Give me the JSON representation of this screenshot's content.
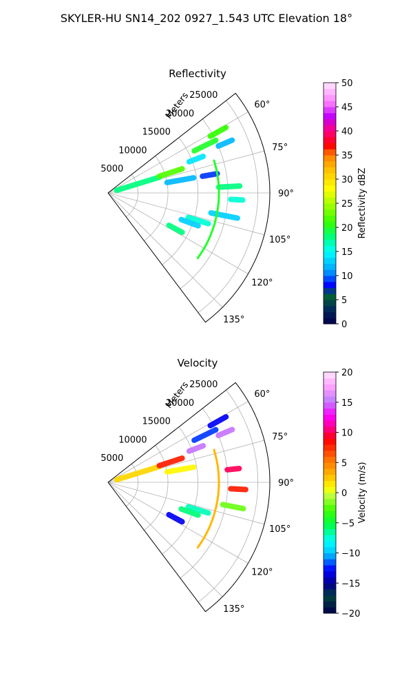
{
  "figure": {
    "suptitle": "SKYLER-HU  SN14_202  0927_1.543 UTC Elevation 18°"
  },
  "chart_data": [
    {
      "type": "polar-sector",
      "title": "Reflectivity",
      "radial_label": "Meters",
      "range_max_m": 27000,
      "radial_ticks": [
        5000,
        10000,
        15000,
        20000,
        25000
      ],
      "azimuth_range_deg": [
        52,
        143
      ],
      "azimuth_ticks": [
        "60°",
        "75°",
        "90°",
        "105°",
        "120°",
        "135°"
      ],
      "azimuth_tick_values": [
        60,
        75,
        90,
        105,
        120,
        135
      ],
      "grid": true,
      "colorbar": {
        "label": "Reflectivity dBZ",
        "min": 0,
        "max": 50,
        "ticks": [
          "0",
          "5",
          "10",
          "15",
          "20",
          "25",
          "30",
          "35",
          "40",
          "45",
          "50"
        ],
        "tick_values": [
          0,
          5,
          10,
          15,
          20,
          25,
          30,
          35,
          40,
          45,
          50
        ],
        "colormap": "pyart_NWSRef-like"
      },
      "echoes": [
        {
          "az": 73,
          "r_from": 1500,
          "r_to": 9000,
          "value": 18
        },
        {
          "az": 72,
          "r_from": 9000,
          "r_to": 13000,
          "value": 22
        },
        {
          "az": 69,
          "r_from": 14500,
          "r_to": 17000,
          "value": 14
        },
        {
          "az": 64,
          "r_from": 16000,
          "r_to": 20000,
          "value": 20
        },
        {
          "az": 61,
          "r_from": 19500,
          "r_to": 22500,
          "value": 21
        },
        {
          "az": 67,
          "r_from": 20000,
          "r_to": 22500,
          "value": 12
        },
        {
          "az": 80,
          "r_from": 10000,
          "r_to": 14500,
          "value": 12
        },
        {
          "az": 80,
          "r_from": 16000,
          "r_to": 18500,
          "value": 9
        },
        {
          "az": 87,
          "r_from": 18500,
          "r_to": 22000,
          "value": 18
        },
        {
          "az": 93,
          "r_from": 20500,
          "r_to": 22500,
          "value": 16
        },
        {
          "az": 101,
          "r_from": 17500,
          "r_to": 22000,
          "value": 13
        },
        {
          "az": 107,
          "r_from": 14000,
          "r_to": 17500,
          "value": 16
        },
        {
          "az": 110,
          "r_from": 13000,
          "r_to": 16000,
          "value": 13
        },
        {
          "az": 118,
          "r_from": 11500,
          "r_to": 14000,
          "value": 18
        }
      ],
      "arc_echo": {
        "r": 18500,
        "az_from": 73,
        "az_to": 126,
        "value": 20
      }
    },
    {
      "type": "polar-sector",
      "title": "Velocity",
      "radial_label": "Meters",
      "range_max_m": 27000,
      "radial_ticks": [
        5000,
        10000,
        15000,
        20000,
        25000
      ],
      "azimuth_range_deg": [
        52,
        143
      ],
      "azimuth_ticks": [
        "60°",
        "75°",
        "90°",
        "105°",
        "120°",
        "135°"
      ],
      "azimuth_tick_values": [
        60,
        75,
        90,
        105,
        120,
        135
      ],
      "grid": true,
      "colorbar": {
        "label": "Velocity (m/s)",
        "min": -20,
        "max": 20,
        "ticks": [
          "−20",
          "−15",
          "−10",
          "−5",
          "0",
          "5",
          "10",
          "15",
          "20"
        ],
        "tick_values": [
          -20,
          -15,
          -10,
          -5,
          0,
          5,
          10,
          15,
          20
        ],
        "colormap": "pyart_NWSVel-like"
      },
      "echoes": [
        {
          "az": 73,
          "r_from": 1500,
          "r_to": 9000,
          "value": 2
        },
        {
          "az": 72,
          "r_from": 9000,
          "r_to": 13000,
          "value": 8
        },
        {
          "az": 69,
          "r_from": 14500,
          "r_to": 17000,
          "value": 15
        },
        {
          "az": 64,
          "r_from": 16000,
          "r_to": 20000,
          "value": -12
        },
        {
          "az": 61,
          "r_from": 19500,
          "r_to": 22500,
          "value": -13
        },
        {
          "az": 67,
          "r_from": 20000,
          "r_to": 22500,
          "value": 15
        },
        {
          "az": 80,
          "r_from": 10000,
          "r_to": 14500,
          "value": 1
        },
        {
          "az": 84,
          "r_from": 20000,
          "r_to": 22000,
          "value": 10
        },
        {
          "az": 93,
          "r_from": 20500,
          "r_to": 23000,
          "value": 8
        },
        {
          "az": 101,
          "r_from": 19500,
          "r_to": 23000,
          "value": -2
        },
        {
          "az": 107,
          "r_from": 14000,
          "r_to": 17500,
          "value": -7
        },
        {
          "az": 110,
          "r_from": 13000,
          "r_to": 16000,
          "value": -6
        },
        {
          "az": 118,
          "r_from": 11500,
          "r_to": 14000,
          "value": -13
        }
      ],
      "arc_echo": {
        "r": 18500,
        "az_from": 73,
        "az_to": 126,
        "value": 3
      }
    }
  ],
  "colors": {
    "axis": "#000000",
    "grid": "#b0b0b0"
  }
}
